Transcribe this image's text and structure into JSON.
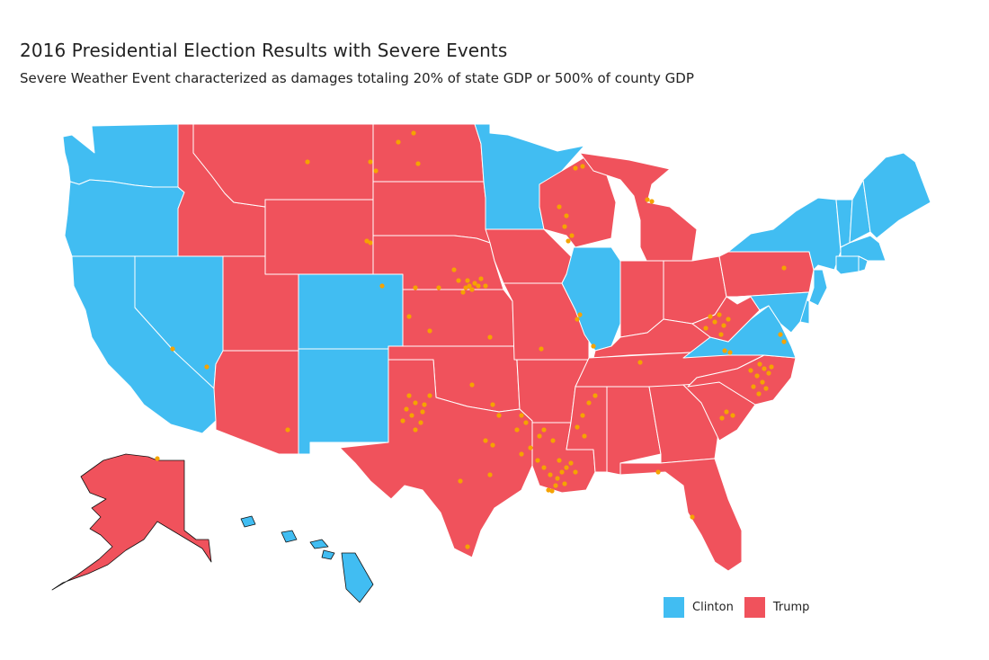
{
  "title": "2016 Presidential Election Results with Severe Events",
  "subtitle": "Severe Weather Event characterized as damages totaling 20% of state GDP or 500% of county GDP",
  "legend": [
    {
      "label": "Clinton",
      "color": "#41bdf2"
    },
    {
      "label": "Trump",
      "color": "#f0525c"
    }
  ],
  "event_color": "#f5a300",
  "states": {
    "WA": "Clinton",
    "OR": "Clinton",
    "CA": "Clinton",
    "NV": "Clinton",
    "ID": "Trump",
    "MT": "Trump",
    "WY": "Trump",
    "UT": "Trump",
    "AZ": "Trump",
    "CO": "Clinton",
    "NM": "Clinton",
    "ND": "Trump",
    "SD": "Trump",
    "NE": "Trump",
    "KS": "Trump",
    "OK": "Trump",
    "TX": "Trump",
    "MN": "Clinton",
    "IA": "Trump",
    "MO": "Trump",
    "AR": "Trump",
    "LA": "Trump",
    "WI": "Trump",
    "IL": "Clinton",
    "MI": "Trump",
    "IN": "Trump",
    "OH": "Trump",
    "KY": "Trump",
    "TN": "Trump",
    "MS": "Trump",
    "AL": "Trump",
    "GA": "Trump",
    "FL": "Trump",
    "SC": "Trump",
    "NC": "Trump",
    "VA": "Clinton",
    "WV": "Trump",
    "PA": "Trump",
    "NY": "Clinton",
    "VT": "Clinton",
    "NH": "Clinton",
    "ME": "Clinton",
    "MA": "Clinton",
    "CT": "Clinton",
    "RI": "Clinton",
    "NJ": "Clinton",
    "DE": "Clinton",
    "MD": "Clinton",
    "AK": "Trump",
    "HI": "Clinton"
  }
}
